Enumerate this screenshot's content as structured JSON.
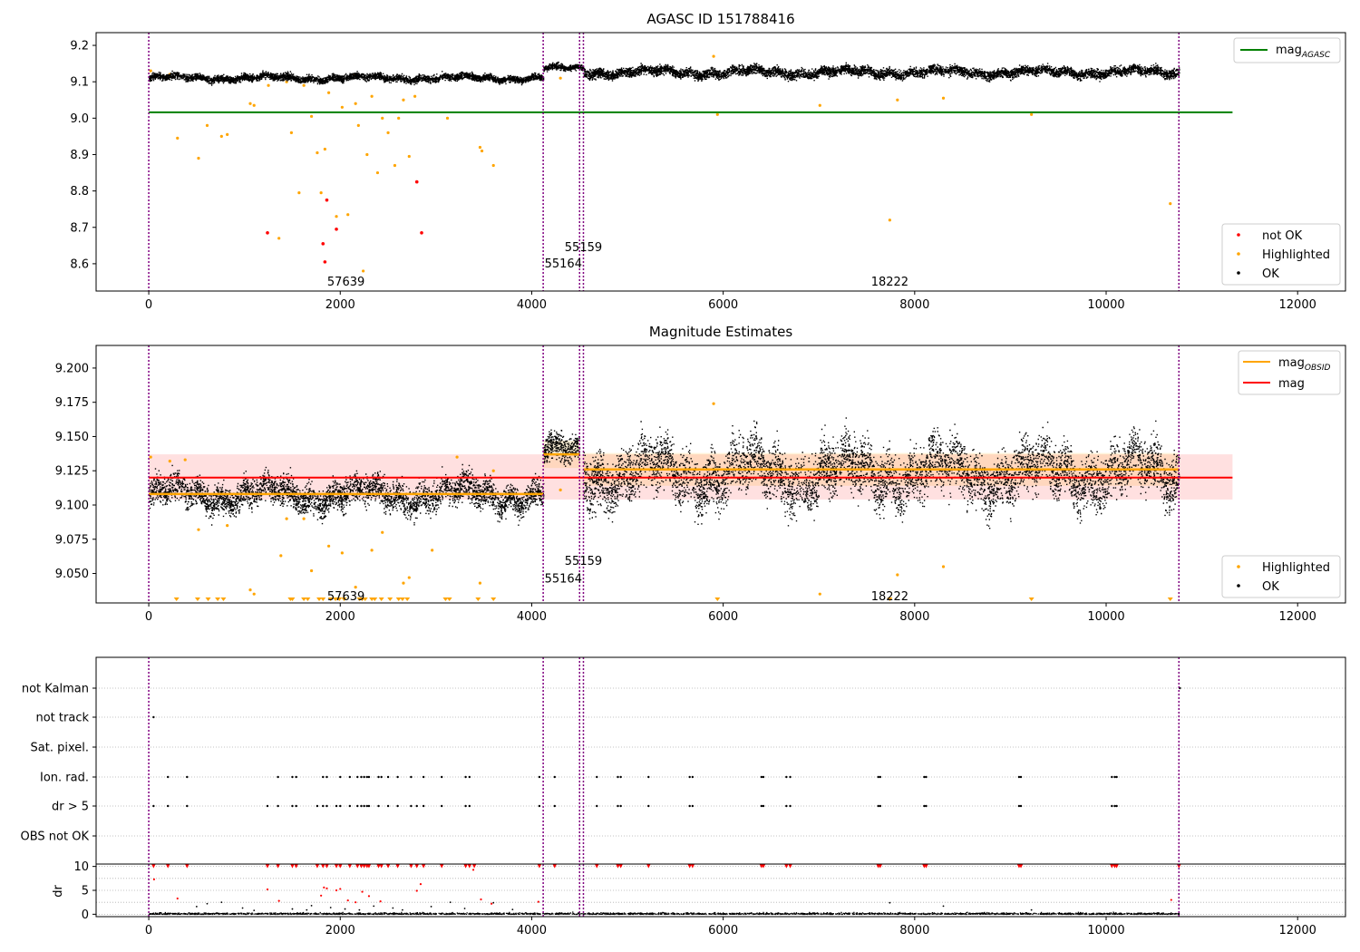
{
  "figure": {
    "background": "#ffffff"
  },
  "obs_markers": [
    0,
    4120,
    4500,
    4540,
    10760
  ],
  "obs_labels": [
    {
      "text": "57639",
      "x": 2060,
      "panel": "top",
      "y": 8.55
    },
    {
      "text": "55164",
      "x": 4330,
      "panel": "top",
      "y": 8.6
    },
    {
      "text": "55159",
      "x": 4540,
      "panel": "top",
      "y": 8.645
    },
    {
      "text": "18222",
      "x": 7740,
      "panel": "top",
      "y": 8.55
    },
    {
      "text": "57639",
      "x": 2060,
      "panel": "middle",
      "y": 9.033
    },
    {
      "text": "55164",
      "x": 4330,
      "panel": "middle",
      "y": 9.046
    },
    {
      "text": "55159",
      "x": 4540,
      "panel": "middle",
      "y": 9.059
    },
    {
      "text": "18222",
      "x": 7740,
      "panel": "middle",
      "y": 9.033
    }
  ],
  "chart_data": [
    {
      "type": "scatter",
      "title": "AGASC ID 151788416",
      "xlim": [
        -550,
        12500
      ],
      "ylim": [
        8.525,
        9.235
      ],
      "xticks": [
        0,
        2000,
        4000,
        6000,
        8000,
        10000,
        12000
      ],
      "yticks": [
        8.6,
        8.7,
        8.8,
        8.9,
        9.0,
        9.1,
        9.2
      ],
      "lines": [
        {
          "name": "mag_AGASC",
          "label_main": "mag",
          "label_sub": "AGASC",
          "y": 9.016,
          "x": [
            0,
            11320
          ],
          "color": "#008000"
        }
      ],
      "legend_lines": {
        "position": "top-right"
      },
      "legend_points": {
        "position": "bottom-right",
        "entries": [
          {
            "label": "not OK",
            "color": "#ff0000"
          },
          {
            "label": "Highlighted",
            "color": "#ffa500"
          },
          {
            "label": "OK",
            "color": "#000000"
          }
        ]
      },
      "bands": [
        {
          "x": [
            0,
            4120
          ],
          "mean": 9.112,
          "spread": 0.008
        },
        {
          "x": [
            4120,
            4500
          ],
          "mean": 9.138,
          "spread": 0.007
        },
        {
          "x": [
            4500,
            4540
          ],
          "mean": 9.138,
          "spread": 0.007
        },
        {
          "x": [
            4540,
            10760
          ],
          "mean": 9.128,
          "spread": 0.011
        }
      ],
      "highlighted": [
        [
          20,
          9.13
        ],
        [
          220,
          9.12
        ],
        [
          300,
          8.945
        ],
        [
          520,
          8.89
        ],
        [
          610,
          8.98
        ],
        [
          760,
          8.95
        ],
        [
          820,
          8.955
        ],
        [
          1060,
          9.04
        ],
        [
          1100,
          9.035
        ],
        [
          1250,
          9.09
        ],
        [
          1360,
          8.67
        ],
        [
          1440,
          9.1
        ],
        [
          1490,
          8.96
        ],
        [
          1570,
          8.795
        ],
        [
          1620,
          9.09
        ],
        [
          1700,
          9.005
        ],
        [
          1760,
          8.905
        ],
        [
          1800,
          8.795
        ],
        [
          1840,
          8.915
        ],
        [
          1880,
          9.07
        ],
        [
          1960,
          8.73
        ],
        [
          2020,
          9.03
        ],
        [
          2080,
          8.735
        ],
        [
          2140,
          9.12
        ],
        [
          2190,
          8.98
        ],
        [
          2240,
          8.58
        ],
        [
          2280,
          8.9
        ],
        [
          2330,
          9.06
        ],
        [
          2390,
          8.85
        ],
        [
          2440,
          9.0
        ],
        [
          2500,
          8.96
        ],
        [
          2570,
          8.87
        ],
        [
          2610,
          9.0
        ],
        [
          2660,
          9.05
        ],
        [
          2720,
          8.895
        ],
        [
          2780,
          9.06
        ],
        [
          3120,
          9.0
        ],
        [
          3460,
          8.92
        ],
        [
          3480,
          8.91
        ],
        [
          3600,
          8.87
        ],
        [
          4300,
          9.11
        ],
        [
          5940,
          9.01
        ],
        [
          7010,
          9.035
        ],
        [
          7740,
          8.72
        ],
        [
          7820,
          9.05
        ],
        [
          8300,
          9.055
        ],
        [
          9220,
          9.01
        ],
        [
          10670,
          8.765
        ],
        [
          5900,
          9.17
        ],
        [
          2160,
          9.04
        ]
      ],
      "not_ok": [
        [
          1240,
          8.685
        ],
        [
          1820,
          8.655
        ],
        [
          1840,
          8.605
        ],
        [
          1860,
          8.775
        ],
        [
          1960,
          8.695
        ],
        [
          2800,
          8.825
        ],
        [
          2850,
          8.685
        ]
      ]
    },
    {
      "type": "scatter",
      "title": "Magnitude Estimates",
      "xlim": [
        -550,
        12500
      ],
      "ylim": [
        9.0285,
        9.2165
      ],
      "xticks": [
        0,
        2000,
        4000,
        6000,
        8000,
        10000,
        12000
      ],
      "yticks": [
        9.05,
        9.075,
        9.1,
        9.125,
        9.15,
        9.175,
        9.2
      ],
      "shaded_band": {
        "y": [
          9.104,
          9.137
        ],
        "x": [
          0,
          11320
        ],
        "color": "#ff0000",
        "opacity": 0.12
      },
      "lines": [
        {
          "name": "mag_OBSID",
          "label_main": "mag",
          "label_sub": "OBSID",
          "color": "#ffa500",
          "segments": [
            {
              "x": [
                0,
                4120
              ],
              "y": 9.108
            },
            {
              "x": [
                4120,
                4500
              ],
              "y": 9.137
            },
            {
              "x": [
                4540,
                10760
              ],
              "y": 9.126
            }
          ]
        },
        {
          "name": "mag",
          "label_main": "mag",
          "label_sub": "",
          "color": "#ff0000",
          "segments": [
            {
              "x": [
                0,
                11320
              ],
              "y": 9.12
            }
          ]
        }
      ],
      "obsid_bands": [
        {
          "x": [
            4120,
            4500
          ],
          "y": [
            9.127,
            9.147
          ]
        },
        {
          "x": [
            4540,
            10760
          ],
          "y": [
            9.114,
            9.138
          ]
        }
      ],
      "legend_lines": {
        "position": "top-right"
      },
      "legend_points": {
        "position": "bottom-right",
        "entries": [
          {
            "label": "Highlighted",
            "color": "#ffa500"
          },
          {
            "label": "OK",
            "color": "#000000"
          }
        ]
      },
      "bands": [
        {
          "x": [
            0,
            4120
          ],
          "mean": 9.108,
          "spread": 0.009
        },
        {
          "x": [
            4120,
            4500
          ],
          "mean": 9.138,
          "spread": 0.009
        },
        {
          "x": [
            4540,
            10760
          ],
          "mean": 9.124,
          "spread": 0.017
        }
      ],
      "highlighted": [
        [
          20,
          9.135
        ],
        [
          220,
          9.132
        ],
        [
          380,
          9.133
        ],
        [
          520,
          9.082
        ],
        [
          820,
          9.085
        ],
        [
          1060,
          9.038
        ],
        [
          1100,
          9.035
        ],
        [
          1380,
          9.063
        ],
        [
          1440,
          9.09
        ],
        [
          1620,
          9.09
        ],
        [
          1700,
          9.052
        ],
        [
          1880,
          9.07
        ],
        [
          2020,
          9.065
        ],
        [
          2160,
          9.04
        ],
        [
          2330,
          9.067
        ],
        [
          2440,
          9.08
        ],
        [
          2660,
          9.043
        ],
        [
          2720,
          9.047
        ],
        [
          2960,
          9.067
        ],
        [
          3220,
          9.135
        ],
        [
          3460,
          9.043
        ],
        [
          3600,
          9.125
        ],
        [
          4300,
          9.111
        ],
        [
          5900,
          9.174
        ],
        [
          7010,
          9.035
        ],
        [
          7820,
          9.049
        ],
        [
          8300,
          9.055
        ]
      ],
      "below_range": [
        290,
        510,
        620,
        720,
        780,
        1480,
        1500,
        1620,
        1660,
        1780,
        1820,
        1900,
        1950,
        1990,
        2040,
        2200,
        2230,
        2260,
        2330,
        2360,
        2430,
        2520,
        2610,
        2650,
        2700,
        3100,
        3140,
        3440,
        3600,
        5940,
        7740,
        9220,
        10670
      ]
    },
    {
      "type": "scatter",
      "title": "",
      "xlim": [
        -550,
        12500
      ],
      "xticks": [
        0,
        2000,
        4000,
        6000,
        8000,
        10000,
        12000
      ],
      "categories": [
        "not Kalman",
        "not track",
        "Sat. pixel.",
        "Ion. rad.",
        "dr > 5",
        "OBS not OK"
      ],
      "flag_points": {
        "not Kalman": [
          10770
        ],
        "not track": [
          50
        ],
        "Sat. pixel.": [],
        "Ion. rad.": [
          200,
          400,
          1350,
          1500,
          1540,
          1820,
          1860,
          2000,
          2100,
          2180,
          2220,
          2250,
          2280,
          2300,
          2400,
          2430,
          2500,
          2600,
          2740,
          2870,
          3060,
          3310,
          3350,
          4080,
          4240,
          4680,
          4900,
          4930,
          5220,
          5650,
          5680,
          6400,
          6420,
          6660,
          6700,
          7620,
          7640,
          8100,
          8120,
          9090,
          9110,
          10060,
          10090,
          10110
        ],
        "dr > 5": [
          50,
          200,
          400,
          1240,
          1350,
          1500,
          1540,
          1760,
          1820,
          1860,
          1960,
          2000,
          2100,
          2180,
          2220,
          2250,
          2280,
          2300,
          2400,
          2500,
          2600,
          2740,
          2800,
          2870,
          3060,
          3310,
          3350,
          4080,
          4240,
          4680,
          4900,
          4930,
          5220,
          5650,
          5680,
          6400,
          6420,
          6660,
          6700,
          7620,
          7640,
          8100,
          8120,
          9090,
          9110,
          10060,
          10090,
          10110
        ],
        "OBS not OK": []
      },
      "dr": {
        "ylabel": "dr",
        "ylim": [
          -0.5,
          10.5
        ],
        "yticks": [
          0,
          5,
          10
        ],
        "large": [
          50,
          200,
          400,
          1240,
          1350,
          1500,
          1540,
          1760,
          1820,
          1860,
          1960,
          2000,
          2100,
          2180,
          2220,
          2250,
          2280,
          2300,
          2400,
          2430,
          2500,
          2600,
          2740,
          2800,
          2870,
          3060,
          3310,
          3350,
          3400,
          4080,
          4240,
          4680,
          4900,
          4930,
          5220,
          5650,
          5680,
          6400,
          6420,
          6660,
          6700,
          7620,
          7640,
          8100,
          8120,
          9090,
          9110,
          10060,
          10090,
          10110,
          10760
        ],
        "medium": [
          [
            55,
            7.3
          ],
          [
            300,
            3.3
          ],
          [
            1240,
            5.2
          ],
          [
            1360,
            2.8
          ],
          [
            1800,
            3.9
          ],
          [
            1830,
            5.6
          ],
          [
            1860,
            5.4
          ],
          [
            1960,
            5.0
          ],
          [
            2000,
            5.3
          ],
          [
            2080,
            2.9
          ],
          [
            2160,
            2.5
          ],
          [
            2230,
            4.7
          ],
          [
            2300,
            3.8
          ],
          [
            2420,
            2.7
          ],
          [
            2800,
            4.9
          ],
          [
            2840,
            6.3
          ],
          [
            3390,
            9.3
          ],
          [
            3470,
            3.1
          ],
          [
            4070,
            2.6
          ],
          [
            10680,
            3.0
          ],
          [
            3580,
            2.2
          ]
        ],
        "small": [
          [
            500,
            1.6
          ],
          [
            610,
            2.2
          ],
          [
            760,
            2.5
          ],
          [
            980,
            1.3
          ],
          [
            1100,
            0.8
          ],
          [
            1500,
            1.1
          ],
          [
            1650,
            0.9
          ],
          [
            1700,
            1.8
          ],
          [
            1900,
            1.4
          ],
          [
            2050,
            1.1
          ],
          [
            2200,
            0.9
          ],
          [
            2350,
            1.7
          ],
          [
            2550,
            1.3
          ],
          [
            2650,
            0.9
          ],
          [
            2950,
            1.6
          ],
          [
            3150,
            2.5
          ],
          [
            3300,
            1.2
          ],
          [
            3600,
            2.4
          ],
          [
            3800,
            1.0
          ],
          [
            7740,
            2.4
          ],
          [
            8300,
            1.7
          ],
          [
            9220,
            0.9
          ]
        ]
      }
    }
  ]
}
